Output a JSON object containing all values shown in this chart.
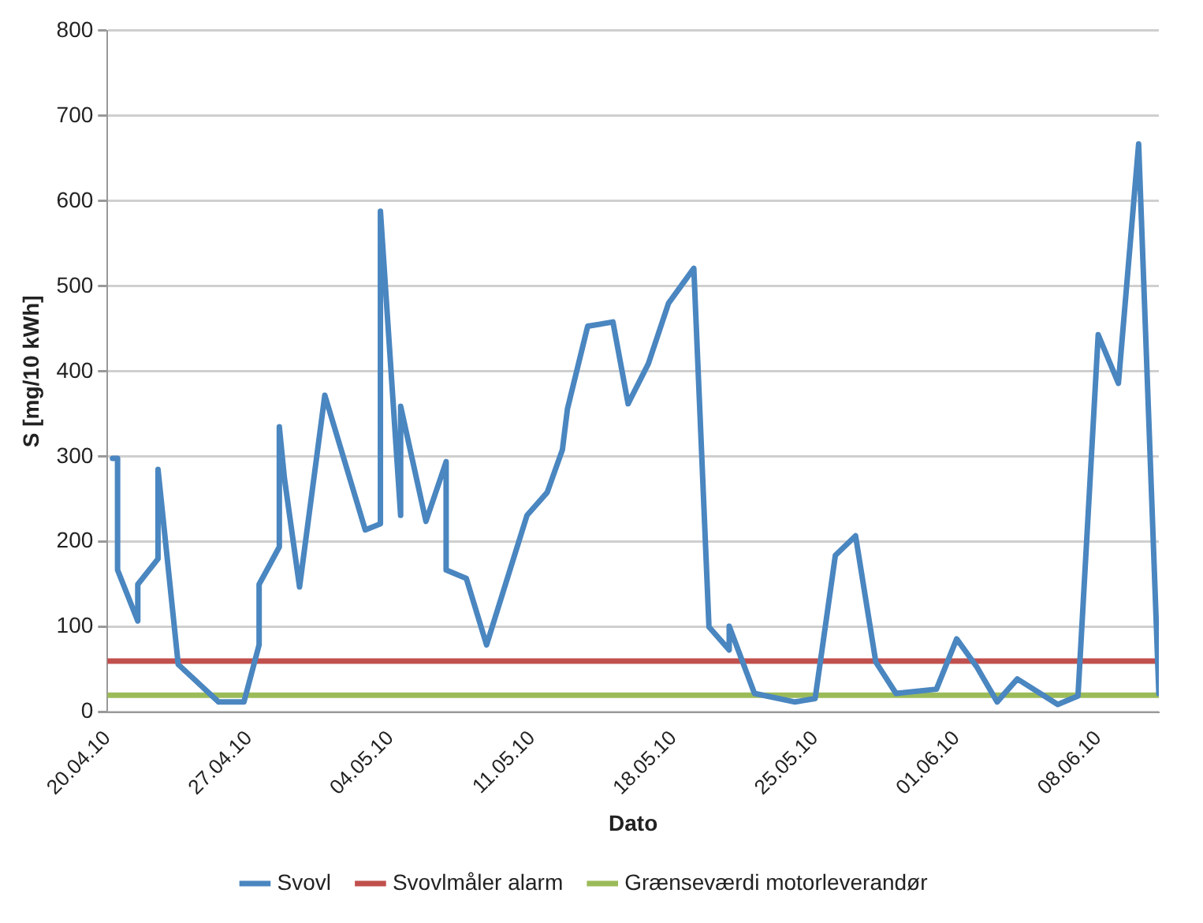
{
  "chart_data": {
    "type": "line",
    "xlabel": "Dato",
    "ylabel": "S [mg/10 kWh]",
    "xlim": [
      "--04-20",
      "--06-11"
    ],
    "xticks": [
      {
        "value": "--04-20",
        "label": "20.04.10"
      },
      {
        "value": "--04-27",
        "label": "27.04.10"
      },
      {
        "value": "--05-04",
        "label": "04.05.10"
      },
      {
        "value": "--05-11",
        "label": "11.05.10"
      },
      {
        "value": "--05-18",
        "label": "18.05.10"
      },
      {
        "value": "--05-25",
        "label": "25.05.10"
      },
      {
        "value": "--06-01",
        "label": "01.06.10"
      },
      {
        "value": "--06-08",
        "label": "08.06.10"
      }
    ],
    "ylim": [
      0,
      800
    ],
    "yticks": [
      0,
      100,
      200,
      300,
      400,
      500,
      600,
      700,
      800
    ],
    "grid": "y",
    "legend": "bottom",
    "marker": "none",
    "line_style": "solid",
    "series": [
      {
        "name": "Svovl",
        "color": "#4a86c0",
        "x": [
          "--04-20T06:00",
          "--04-20T12:00",
          "--04-20T12:00",
          "--04-21T12:00",
          "--04-21T12:00",
          "--04-22T12:00",
          "--04-22T12:00",
          "--04-23T12:00",
          "--04-25T12:00",
          "--04-26T18:00",
          "--04-27T12:00",
          "--04-27T12:00",
          "--04-28T12:00",
          "--04-28T12:00",
          "--04-28T18:00",
          "--04-29T12:00",
          "--04-30T18:00",
          "--05-02T18:00",
          "--05-03T12:00",
          "--05-03T12:00",
          "--05-04T12:00",
          "--05-04T12:00",
          "--05-05T18:00",
          "--05-06T18:00",
          "--05-06T18:00",
          "--05-07T18:00",
          "--05-08T18:00",
          "--05-10T18:00",
          "--05-11T18:00",
          "--05-12T12:00",
          "--05-12T18:00",
          "--05-13T18:00",
          "--05-15",
          "--05-15T18:00",
          "--05-16T18:00",
          "--05-17T18:00",
          "--05-19",
          "--05-19T18:00",
          "--05-20T18:00",
          "--05-20T18:00",
          "--05-22",
          "--05-24",
          "--05-25",
          "--05-26",
          "--05-27",
          "--05-28",
          "--05-29",
          "--05-31",
          "--06-01",
          "--06-02",
          "--06-03",
          "--06-04",
          "--06-06",
          "--06-07",
          "--06-08",
          "--06-09",
          "--06-10",
          "--06-11"
        ],
        "values": [
          298,
          298,
          167,
          107,
          150,
          180,
          285,
          56,
          12,
          12,
          79,
          150,
          194,
          335,
          275,
          147,
          372,
          214,
          221,
          588,
          231,
          359,
          224,
          294,
          167,
          157,
          79,
          231,
          258,
          308,
          356,
          453,
          458,
          362,
          409,
          480,
          521,
          100,
          73,
          101,
          22,
          12,
          16,
          184,
          207,
          59,
          22,
          27,
          86,
          53,
          12,
          39,
          9,
          19,
          443,
          386,
          667,
          22
        ]
      },
      {
        "name": "Svovlmåler alarm",
        "color": "#c0504d",
        "x": [
          "--04-20",
          "--06-11"
        ],
        "values": [
          60,
          60
        ]
      },
      {
        "name": "Grænseværdi motorleverandør",
        "color": "#9bbb59",
        "x": [
          "--04-20",
          "--06-11"
        ],
        "values": [
          20,
          20
        ]
      }
    ]
  }
}
